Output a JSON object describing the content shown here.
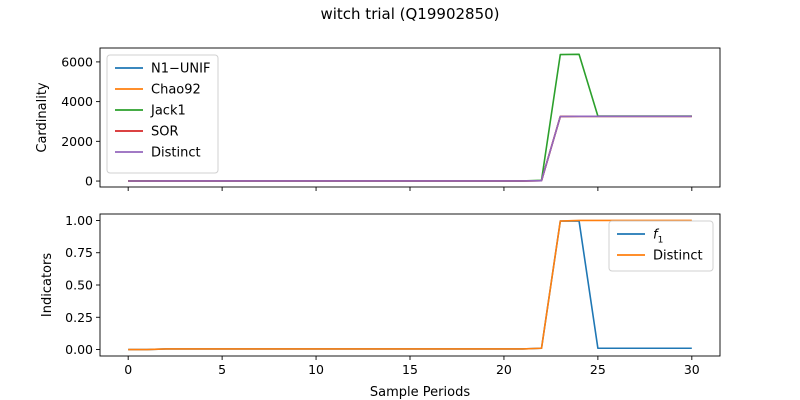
{
  "figure": {
    "title": "witch trial (Q19902850)"
  },
  "chart_data": [
    {
      "type": "line",
      "ylabel": "Cardinality",
      "xlabel": "",
      "xlim": [
        -1.5,
        31.5
      ],
      "ylim": [
        -300,
        6700
      ],
      "xticks": [
        0,
        5,
        10,
        15,
        20,
        25,
        30
      ],
      "yticks": [
        0,
        2000,
        4000,
        6000
      ],
      "yticklabels": [
        "0",
        "2000",
        "4000",
        "6000"
      ],
      "show_xticklabels": false,
      "legend": "upper-left",
      "x": [
        0,
        1,
        2,
        3,
        4,
        5,
        6,
        7,
        8,
        9,
        10,
        11,
        12,
        13,
        14,
        15,
        16,
        17,
        18,
        19,
        20,
        21,
        22,
        23,
        24,
        25,
        26,
        27,
        28,
        29,
        30
      ],
      "series": [
        {
          "name": "N1−UNIF",
          "color": "#1f77b4",
          "values": [
            2,
            2,
            3,
            3,
            3,
            3,
            3,
            3,
            3,
            3,
            3,
            3,
            3,
            3,
            3,
            3,
            3,
            3,
            3,
            3,
            3,
            3,
            20,
            3250,
            3260,
            3260,
            3260,
            3260,
            3260,
            3260,
            3260
          ]
        },
        {
          "name": "Chao92",
          "color": "#ff7f0e",
          "values": [
            2,
            2,
            3,
            3,
            3,
            3,
            3,
            3,
            3,
            3,
            3,
            3,
            3,
            3,
            3,
            3,
            3,
            3,
            3,
            3,
            3,
            3,
            20,
            3250,
            3260,
            3260,
            3260,
            3260,
            3260,
            3260,
            3260
          ]
        },
        {
          "name": "Jack1",
          "color": "#2ca02c",
          "values": [
            3,
            3,
            5,
            5,
            5,
            5,
            5,
            5,
            5,
            5,
            5,
            5,
            5,
            5,
            5,
            5,
            5,
            5,
            5,
            5,
            5,
            5,
            40,
            6370,
            6380,
            3270,
            3270,
            3270,
            3270,
            3270,
            3270
          ]
        },
        {
          "name": "SOR",
          "color": "#d62728",
          "values": [
            2,
            2,
            3,
            3,
            3,
            3,
            3,
            3,
            3,
            3,
            3,
            3,
            3,
            3,
            3,
            3,
            3,
            3,
            3,
            3,
            3,
            3,
            20,
            3250,
            3260,
            3260,
            3260,
            3260,
            3260,
            3260,
            3260
          ]
        },
        {
          "name": "Distinct",
          "color": "#9467bd",
          "values": [
            2,
            2,
            3,
            3,
            3,
            3,
            3,
            3,
            3,
            3,
            3,
            3,
            3,
            3,
            3,
            3,
            3,
            3,
            3,
            3,
            3,
            3,
            20,
            3250,
            3260,
            3260,
            3260,
            3260,
            3260,
            3260,
            3260
          ]
        }
      ]
    },
    {
      "type": "line",
      "ylabel": "Indicators",
      "xlabel": "Sample Periods",
      "xlim": [
        -1.5,
        31.5
      ],
      "ylim": [
        -0.05,
        1.05
      ],
      "xticks": [
        0,
        5,
        10,
        15,
        20,
        25,
        30
      ],
      "xticklabels": [
        "0",
        "5",
        "10",
        "15",
        "20",
        "25",
        "30"
      ],
      "yticks": [
        0.0,
        0.25,
        0.5,
        0.75,
        1.0
      ],
      "yticklabels": [
        "0.00",
        "0.25",
        "0.50",
        "0.75",
        "1.00"
      ],
      "show_xticklabels": true,
      "legend": "upper-right",
      "x": [
        0,
        1,
        2,
        3,
        4,
        5,
        6,
        7,
        8,
        9,
        10,
        11,
        12,
        13,
        14,
        15,
        16,
        17,
        18,
        19,
        20,
        21,
        22,
        23,
        24,
        25,
        26,
        27,
        28,
        29,
        30
      ],
      "series": [
        {
          "name": "f",
          "subscript": "1",
          "color": "#1f77b4",
          "values": [
            0.0,
            0.0,
            0.005,
            0.005,
            0.005,
            0.005,
            0.005,
            0.005,
            0.005,
            0.005,
            0.005,
            0.005,
            0.005,
            0.005,
            0.005,
            0.005,
            0.005,
            0.005,
            0.005,
            0.005,
            0.005,
            0.005,
            0.01,
            0.995,
            0.995,
            0.01,
            0.01,
            0.01,
            0.01,
            0.01,
            0.01
          ]
        },
        {
          "name": "Distinct",
          "color": "#ff7f0e",
          "values": [
            0.0,
            0.0,
            0.005,
            0.005,
            0.005,
            0.005,
            0.005,
            0.005,
            0.005,
            0.005,
            0.005,
            0.005,
            0.005,
            0.005,
            0.005,
            0.005,
            0.005,
            0.005,
            0.005,
            0.005,
            0.005,
            0.005,
            0.01,
            0.995,
            1.0,
            1.0,
            1.0,
            1.0,
            1.0,
            1.0,
            1.0
          ]
        }
      ]
    }
  ]
}
